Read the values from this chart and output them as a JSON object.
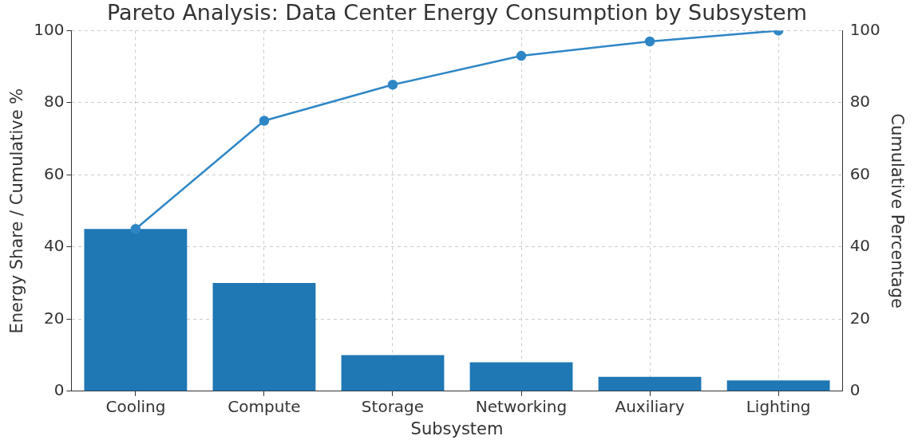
{
  "chart_data": {
    "type": "bar",
    "title": "Pareto Analysis: Data Center Energy Consumption by Subsystem",
    "xlabel": "Subsystem",
    "ylabel": "Energy Share / Cumulative %",
    "y2label": "Cumulative Percentage",
    "categories": [
      "Cooling",
      "Compute",
      "Storage",
      "Networking",
      "Auxiliary",
      "Lighting"
    ],
    "series": [
      {
        "color": "#1f77b4",
        "values": [
          45,
          30,
          10,
          8,
          4,
          3
        ]
      },
      {
        "type": "line",
        "axis": "y2",
        "color": "#2f86c6",
        "marker": "circle",
        "line_style": "solid",
        "values": [
          45,
          75,
          85,
          93,
          97,
          100
        ]
      }
    ],
    "ylim": [
      0,
      100
    ],
    "yticks": [
      0,
      20,
      40,
      60,
      80,
      100
    ],
    "y2lim": [
      0,
      100
    ],
    "y2ticks": [
      0,
      20,
      40,
      60,
      80,
      100
    ],
    "grid": true,
    "legend": false
  }
}
